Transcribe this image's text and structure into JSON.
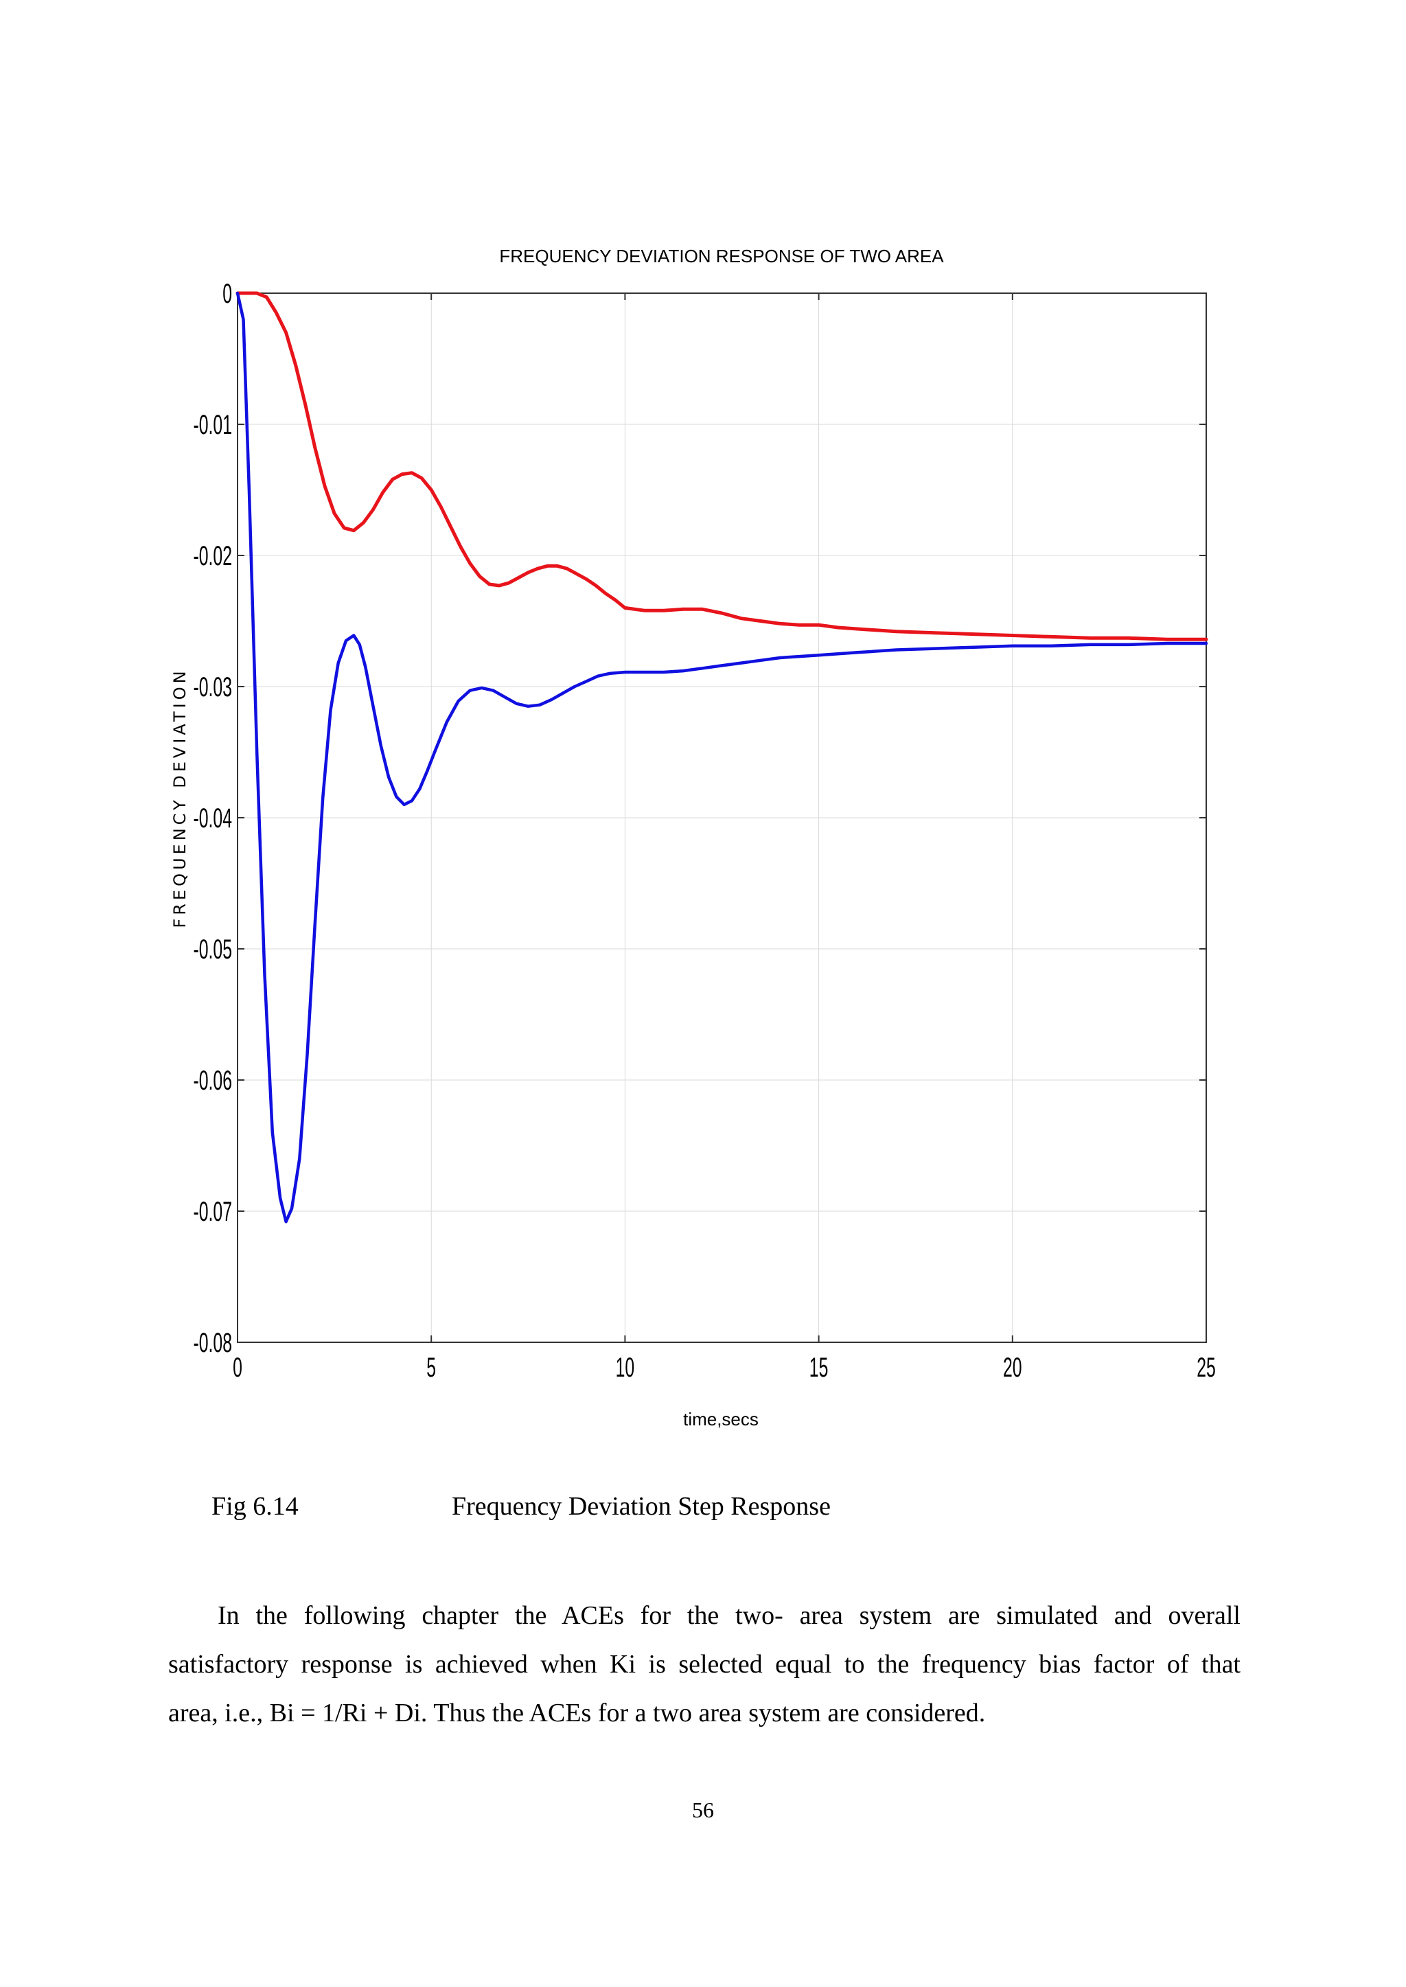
{
  "chart_data": {
    "type": "line",
    "title": "FREQUENCY DEVIATION RESPONSE OF TWO AREA",
    "xlabel": "time,secs",
    "ylabel": "FREQUENCY DEVIATION",
    "xlim": [
      0,
      25
    ],
    "ylim": [
      -0.08,
      0
    ],
    "xticks": [
      0,
      5,
      10,
      15,
      20,
      25
    ],
    "xtick_labels": [
      "0",
      "5",
      "10",
      "15",
      "20",
      "25"
    ],
    "yticks": [
      0,
      -0.01,
      -0.02,
      -0.03,
      -0.04,
      -0.05,
      -0.06,
      -0.07,
      -0.08
    ],
    "ytick_labels": [
      "0",
      "-0.01",
      "-0.02",
      "-0.03",
      "-0.04",
      "-0.05",
      "-0.06",
      "-0.07",
      "-0.08"
    ],
    "grid": true,
    "series": [
      {
        "color": "#e8141b",
        "x": [
          0,
          0.25,
          0.5,
          0.75,
          1.0,
          1.25,
          1.5,
          1.75,
          2.0,
          2.25,
          2.5,
          2.75,
          3.0,
          3.25,
          3.5,
          3.75,
          4.0,
          4.25,
          4.5,
          4.75,
          5.0,
          5.25,
          5.5,
          5.75,
          6.0,
          6.25,
          6.5,
          6.75,
          7.0,
          7.25,
          7.5,
          7.75,
          8.0,
          8.25,
          8.5,
          8.75,
          9.0,
          9.25,
          9.5,
          9.75,
          10.0,
          10.5,
          11.0,
          11.5,
          12.0,
          12.5,
          13.0,
          13.5,
          14.0,
          14.5,
          15.0,
          15.5,
          16.0,
          16.5,
          17.0,
          18.0,
          19.0,
          20.0,
          21.0,
          22.0,
          23.0,
          24.0,
          25.0
        ],
        "y": [
          0,
          0,
          0,
          -0.0003,
          -0.0015,
          -0.003,
          -0.0055,
          -0.0085,
          -0.0118,
          -0.0147,
          -0.0168,
          -0.0179,
          -0.0181,
          -0.0175,
          -0.0165,
          -0.0152,
          -0.0142,
          -0.0138,
          -0.0137,
          -0.0141,
          -0.015,
          -0.0163,
          -0.0178,
          -0.0193,
          -0.0206,
          -0.0216,
          -0.0222,
          -0.0223,
          -0.0221,
          -0.0217,
          -0.0213,
          -0.021,
          -0.0208,
          -0.0208,
          -0.021,
          -0.0214,
          -0.0218,
          -0.0223,
          -0.0229,
          -0.0234,
          -0.024,
          -0.0242,
          -0.0242,
          -0.0241,
          -0.0241,
          -0.0244,
          -0.0248,
          -0.025,
          -0.0252,
          -0.0253,
          -0.0253,
          -0.0255,
          -0.0256,
          -0.0257,
          -0.0258,
          -0.0259,
          -0.026,
          -0.0261,
          -0.0262,
          -0.0263,
          -0.0263,
          -0.0264,
          -0.0264
        ]
      },
      {
        "color": "#1010e0",
        "x": [
          0,
          0.15,
          0.3,
          0.5,
          0.7,
          0.9,
          1.1,
          1.25,
          1.4,
          1.6,
          1.8,
          2.0,
          2.2,
          2.4,
          2.6,
          2.8,
          3.0,
          3.15,
          3.3,
          3.5,
          3.7,
          3.9,
          4.1,
          4.3,
          4.5,
          4.7,
          4.9,
          5.1,
          5.4,
          5.7,
          6.0,
          6.3,
          6.6,
          6.9,
          7.2,
          7.5,
          7.8,
          8.1,
          8.4,
          8.7,
          9.0,
          9.3,
          9.6,
          10.0,
          10.5,
          11.0,
          11.5,
          12.0,
          12.5,
          13.0,
          13.5,
          14.0,
          14.5,
          15.0,
          15.5,
          16.0,
          16.5,
          17.0,
          18.0,
          19.0,
          20.0,
          21.0,
          22.0,
          23.0,
          24.0,
          25.0
        ],
        "y": [
          0,
          -0.002,
          -0.015,
          -0.035,
          -0.052,
          -0.064,
          -0.069,
          -0.0708,
          -0.0698,
          -0.066,
          -0.058,
          -0.048,
          -0.0385,
          -0.0318,
          -0.0282,
          -0.0265,
          -0.0261,
          -0.0268,
          -0.0285,
          -0.0315,
          -0.0345,
          -0.0369,
          -0.0384,
          -0.039,
          -0.0387,
          -0.0378,
          -0.0364,
          -0.0349,
          -0.0327,
          -0.0311,
          -0.0303,
          -0.0301,
          -0.0303,
          -0.0308,
          -0.0313,
          -0.0315,
          -0.0314,
          -0.031,
          -0.0305,
          -0.03,
          -0.0296,
          -0.0292,
          -0.029,
          -0.0289,
          -0.0289,
          -0.0289,
          -0.0288,
          -0.0286,
          -0.0284,
          -0.0282,
          -0.028,
          -0.0278,
          -0.0277,
          -0.0276,
          -0.0275,
          -0.0274,
          -0.0273,
          -0.0272,
          -0.0271,
          -0.027,
          -0.0269,
          -0.0269,
          -0.0268,
          -0.0268,
          -0.0267,
          -0.0267
        ]
      }
    ]
  },
  "caption": {
    "number": "Fig 6.14",
    "text": "Frequency  Deviation  Step Response"
  },
  "paragraph": {
    "lines": [
      "In the following chapter the ACEs for the two- area system are simulated and overall",
      "satisfactory response is achieved when Ki is selected equal to the frequency bias factor of that",
      "area, i.e., Bi = 1/Ri + Di. Thus the ACEs for a two area system are considered."
    ]
  },
  "page_number": "56"
}
